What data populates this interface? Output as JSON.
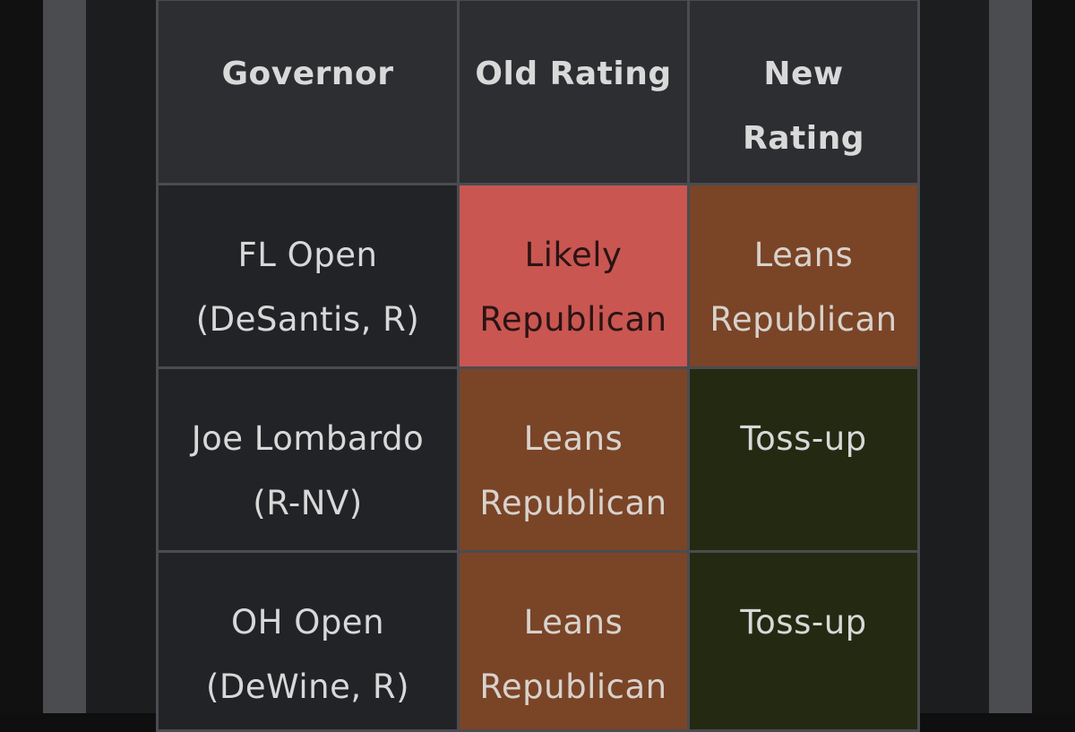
{
  "table": {
    "headers": [
      "Governor",
      "Old Rating",
      "New Rating"
    ],
    "rows": [
      {
        "governor": [
          "FL Open",
          "(DeSantis, R)"
        ],
        "old_rating": [
          "Likely",
          "Republican"
        ],
        "new_rating": [
          "Leans",
          "Republican"
        ]
      },
      {
        "governor": [
          "Joe Lombardo",
          "(R-NV)"
        ],
        "old_rating": [
          "Leans",
          "Republican"
        ],
        "new_rating": [
          "Toss-up"
        ]
      },
      {
        "governor": [
          "OH Open",
          "(DeWine, R)"
        ],
        "old_rating": [
          "Leans",
          "Republican"
        ],
        "new_rating": [
          "Toss-up"
        ]
      }
    ]
  },
  "colors": {
    "likely_republican": "#c95651",
    "leans_republican": "#7a4427",
    "toss_up": "#232a11",
    "header_bg": "#2d2e31",
    "cell_bg": "#222326"
  }
}
